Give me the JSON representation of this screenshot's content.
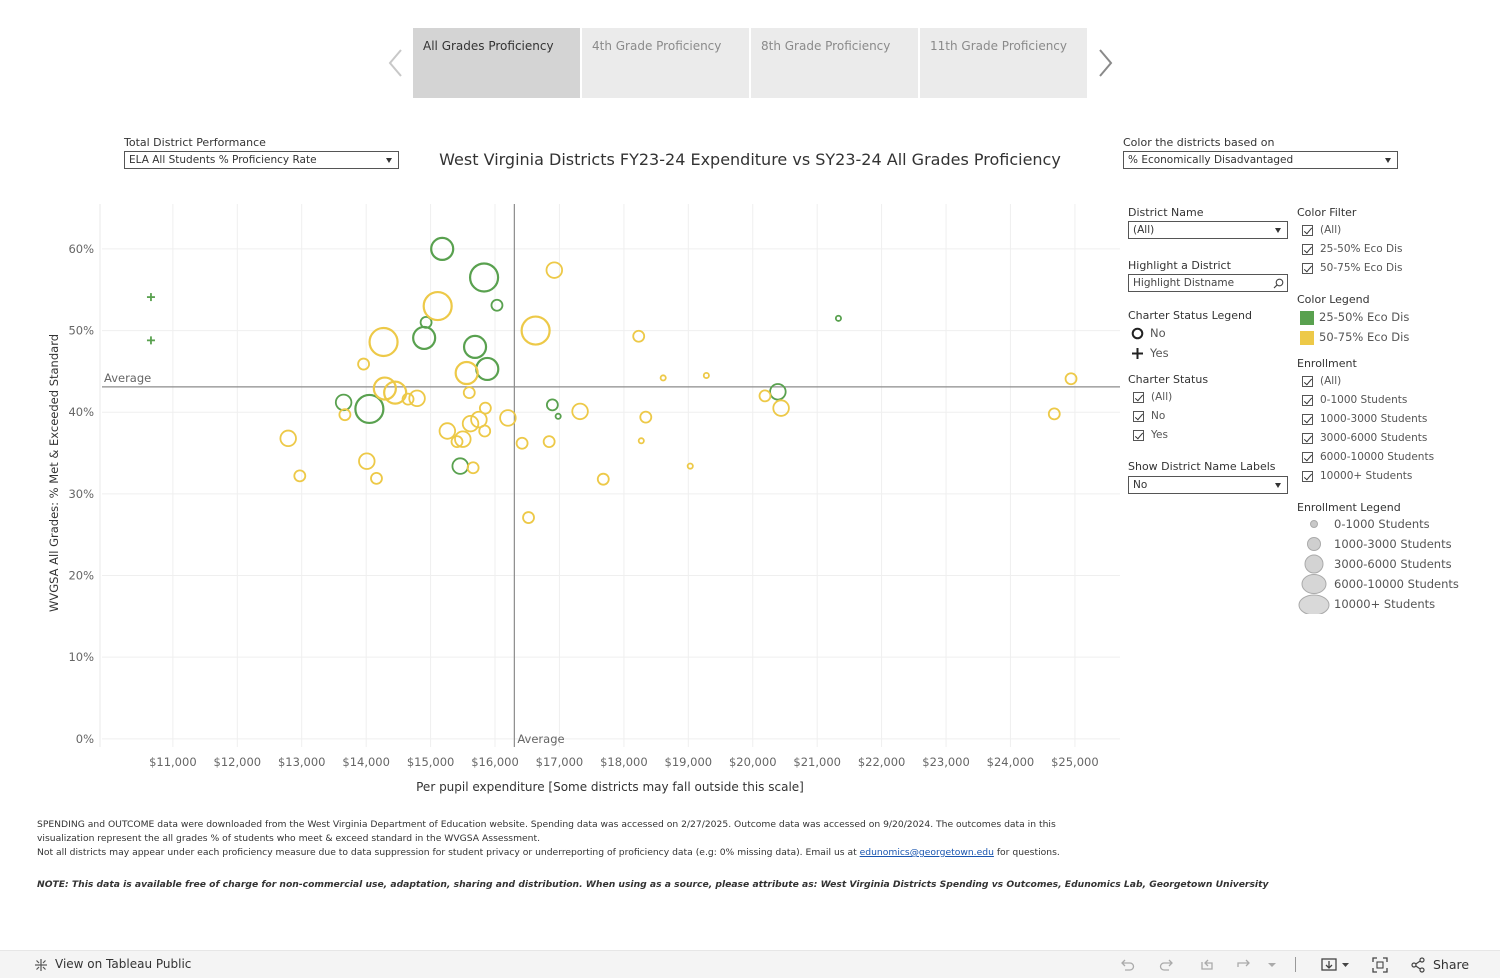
{
  "tabs": [
    {
      "label": "All Grades Proficiency",
      "active": true
    },
    {
      "label": "4th Grade Proficiency",
      "active": false
    },
    {
      "label": "8th Grade Proficiency",
      "active": false
    },
    {
      "label": "11th Grade Proficiency",
      "active": false
    }
  ],
  "controls": {
    "performance_label": "Total District Performance",
    "performance_value": "ELA All Students % Proficiency Rate",
    "color_label": "Color the districts based on",
    "color_value": "% Economically Disadvantaged",
    "district_name_label": "District Name",
    "district_name_value": "(All)",
    "highlight_label": "Highlight a District",
    "highlight_placeholder": "Highlight Distname",
    "charter_legend_label": "Charter Status Legend",
    "charter_legend_no": "No",
    "charter_legend_yes": "Yes",
    "charter_status_label": "Charter Status",
    "charter_status_items": [
      "(All)",
      "No",
      "Yes"
    ],
    "show_labels_label": "Show District Name Labels",
    "show_labels_value": "No",
    "color_filter_label": "Color Filter",
    "color_filter_items": [
      "(All)",
      "25-50% Eco Dis",
      "50-75% Eco Dis"
    ],
    "color_legend_label": "Color Legend",
    "color_legend_items": [
      {
        "label": "25-50% Eco Dis",
        "color": "#59a14f"
      },
      {
        "label": "50-75% Eco Dis",
        "color": "#edc948"
      }
    ],
    "enrollment_label": "Enrollment",
    "enrollment_items": [
      "(All)",
      "0-1000 Students",
      "1000-3000 Students",
      "3000-6000 Students",
      "6000-10000 Students",
      "10000+ Students"
    ],
    "enrollment_legend_label": "Enrollment Legend",
    "enrollment_legend_items": [
      "0-1000 Students",
      "1000-3000 Students",
      "3000-6000 Students",
      "6000-10000 Students",
      "10000+ Students"
    ]
  },
  "chart_data": {
    "type": "scatter",
    "title": "West Virginia Districts FY23-24 Expenditure vs SY23-24 All Grades Proficiency",
    "xlabel": "Per pupil expenditure [Some districts may fall outside this scale]",
    "ylabel": "WVGSA All Grades: % Met & Exceeded Standard",
    "xlim": [
      9900,
      25700
    ],
    "ylim": [
      -0.01,
      0.655
    ],
    "x_ticks": [
      11000,
      12000,
      13000,
      14000,
      15000,
      16000,
      17000,
      18000,
      19000,
      20000,
      21000,
      22000,
      23000,
      24000,
      25000
    ],
    "x_tick_labels": [
      "$11,000",
      "$12,000",
      "$13,000",
      "$14,000",
      "$15,000",
      "$16,000",
      "$17,000",
      "$18,000",
      "$19,000",
      "$20,000",
      "$21,000",
      "$22,000",
      "$23,000",
      "$24,000",
      "$25,000"
    ],
    "y_ticks": [
      0,
      0.1,
      0.2,
      0.3,
      0.4,
      0.5,
      0.6
    ],
    "y_tick_labels": [
      "0%",
      "10%",
      "20%",
      "30%",
      "40%",
      "50%",
      "60%"
    ],
    "reference_lines": {
      "x_avg": 16300,
      "y_avg": 0.431,
      "x_label": "Average",
      "y_label": "Average"
    },
    "grid": true,
    "series": [
      {
        "name": "25-50% Eco Dis",
        "color": "#59a14f",
        "points": [
          {
            "x": 15180,
            "y": 0.6,
            "size": 4
          },
          {
            "x": 15830,
            "y": 0.565,
            "size": 5
          },
          {
            "x": 16030,
            "y": 0.531,
            "size": 2
          },
          {
            "x": 14930,
            "y": 0.51,
            "size": 2
          },
          {
            "x": 14900,
            "y": 0.491,
            "size": 4
          },
          {
            "x": 15690,
            "y": 0.48,
            "size": 4
          },
          {
            "x": 15880,
            "y": 0.453,
            "size": 4
          },
          {
            "x": 13650,
            "y": 0.412,
            "size": 3
          },
          {
            "x": 14050,
            "y": 0.404,
            "size": 5
          },
          {
            "x": 16890,
            "y": 0.409,
            "size": 2
          },
          {
            "x": 16980,
            "y": 0.395,
            "size": 1
          },
          {
            "x": 20390,
            "y": 0.425,
            "size": 3
          },
          {
            "x": 15460,
            "y": 0.334,
            "size": 3
          },
          {
            "x": 21330,
            "y": 0.515,
            "size": 1
          }
        ]
      },
      {
        "name": "50-75% Eco Dis",
        "color": "#edc948",
        "points": [
          {
            "x": 16920,
            "y": 0.574,
            "size": 3
          },
          {
            "x": 15110,
            "y": 0.53,
            "size": 5
          },
          {
            "x": 16630,
            "y": 0.5,
            "size": 5
          },
          {
            "x": 14270,
            "y": 0.486,
            "size": 5
          },
          {
            "x": 13960,
            "y": 0.459,
            "size": 2
          },
          {
            "x": 15560,
            "y": 0.448,
            "size": 4
          },
          {
            "x": 15600,
            "y": 0.424,
            "size": 2
          },
          {
            "x": 14290,
            "y": 0.429,
            "size": 4
          },
          {
            "x": 14450,
            "y": 0.424,
            "size": 4
          },
          {
            "x": 14650,
            "y": 0.416,
            "size": 2
          },
          {
            "x": 14790,
            "y": 0.417,
            "size": 3
          },
          {
            "x": 13670,
            "y": 0.397,
            "size": 2
          },
          {
            "x": 15850,
            "y": 0.405,
            "size": 2
          },
          {
            "x": 15750,
            "y": 0.391,
            "size": 3
          },
          {
            "x": 15620,
            "y": 0.386,
            "size": 3
          },
          {
            "x": 15260,
            "y": 0.377,
            "size": 3
          },
          {
            "x": 15840,
            "y": 0.377,
            "size": 2
          },
          {
            "x": 15500,
            "y": 0.367,
            "size": 3
          },
          {
            "x": 15410,
            "y": 0.364,
            "size": 2
          },
          {
            "x": 16200,
            "y": 0.393,
            "size": 3
          },
          {
            "x": 17320,
            "y": 0.401,
            "size": 3
          },
          {
            "x": 18340,
            "y": 0.394,
            "size": 2
          },
          {
            "x": 16420,
            "y": 0.362,
            "size": 2
          },
          {
            "x": 16840,
            "y": 0.364,
            "size": 2
          },
          {
            "x": 18270,
            "y": 0.365,
            "size": 1
          },
          {
            "x": 12790,
            "y": 0.368,
            "size": 3
          },
          {
            "x": 14010,
            "y": 0.34,
            "size": 3
          },
          {
            "x": 15660,
            "y": 0.332,
            "size": 2
          },
          {
            "x": 12970,
            "y": 0.322,
            "size": 2
          },
          {
            "x": 14160,
            "y": 0.319,
            "size": 2
          },
          {
            "x": 17680,
            "y": 0.318,
            "size": 2
          },
          {
            "x": 19030,
            "y": 0.334,
            "size": 1
          },
          {
            "x": 16520,
            "y": 0.271,
            "size": 2
          },
          {
            "x": 18230,
            "y": 0.493,
            "size": 2
          },
          {
            "x": 18610,
            "y": 0.442,
            "size": 1
          },
          {
            "x": 19280,
            "y": 0.445,
            "size": 1
          },
          {
            "x": 20190,
            "y": 0.42,
            "size": 2
          },
          {
            "x": 20440,
            "y": 0.405,
            "size": 3
          },
          {
            "x": 24680,
            "y": 0.398,
            "size": 2
          },
          {
            "x": 24940,
            "y": 0.441,
            "size": 2
          }
        ]
      },
      {
        "name": "Charter (Yes)",
        "color": "#59a14f",
        "marker": "plus",
        "points": [
          {
            "x": 10660,
            "y": 0.541
          },
          {
            "x": 10660,
            "y": 0.488
          }
        ]
      }
    ]
  },
  "notes": {
    "line1": "SPENDING and OUTCOME data were downloaded from the West Virginia Department of Education website. Spending data was accessed on 2/27/2025. Outcome data was accessed on 9/20/2024. The outcomes data in this visualization represent the all grades % of students who meet & exceed standard in the WVGSA Assessment.",
    "line2_pre": "Not all districts may appear under each proficiency measure due to data suppression for student privacy or underreporting of proficiency data (e.g: 0% missing data). Email us at ",
    "email": "edunomics@georgetown.edu",
    "line2_post": " for questions.",
    "attribution": "NOTE: This data is available free of charge for non-commercial use, adaptation, sharing and distribution. When using as a source, please attribute as: West Virginia Districts Spending vs Outcomes, Edunomics Lab, Georgetown University"
  },
  "bottom_bar": {
    "view_label": "View on Tableau Public",
    "share_label": "Share"
  }
}
